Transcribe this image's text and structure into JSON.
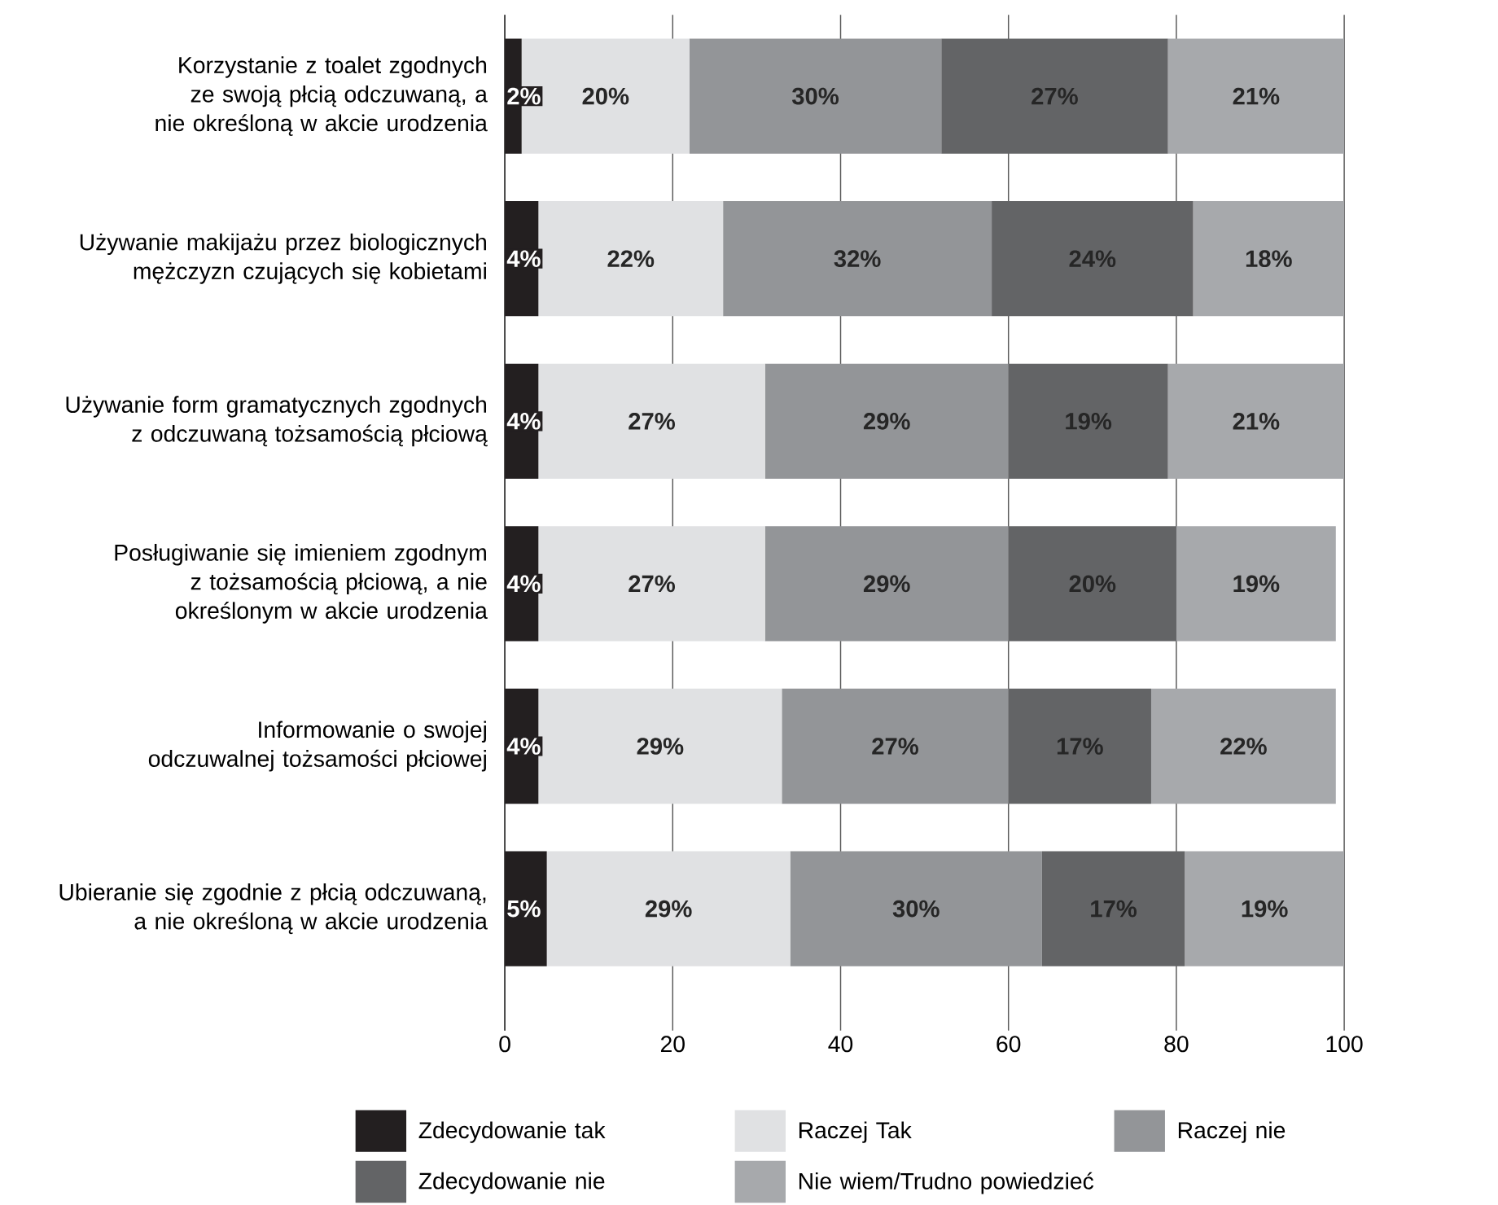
{
  "chart_data": {
    "type": "bar",
    "orientation": "horizontal",
    "stacked": true,
    "categories": [
      "Korzystanie z toalet zgodnych ze swoją płcią odczuwaną, a nie określoną w akcie urodzenia",
      "Używanie makijażu przez biologicznych mężczyzn czujących się kobietami",
      "Używanie form gramatycznych zgodnych z odczuwaną tożsamością płciową",
      "Posługiwanie się imieniem zgodnym z tożsamością płciową, a nie określonym w akcie urodzenia",
      "Informowanie o swojej odczuwalnej tożsamości płciowej",
      "Ubieranie się zgodnie z płcią odczuwaną, a nie określoną w akcie urodzenia"
    ],
    "series": [
      {
        "name": "Zdecydowanie tak",
        "color": "#231f20",
        "values": [
          2,
          4,
          4,
          4,
          4,
          5
        ],
        "value_labels": [
          "2%",
          "4%",
          "4%",
          "4%",
          "4%",
          "5%"
        ]
      },
      {
        "name": "Raczej Tak",
        "color": "#e0e1e3",
        "values": [
          20,
          22,
          27,
          27,
          29,
          29
        ],
        "value_labels": [
          "20%",
          "22%",
          "27%",
          "27%",
          "29%",
          "29%"
        ]
      },
      {
        "name": "Raczej nie",
        "color": "#939598",
        "values": [
          30,
          32,
          29,
          29,
          27,
          30
        ],
        "value_labels": [
          "30%",
          "32%",
          "29%",
          "29%",
          "27%",
          "30%"
        ]
      },
      {
        "name": "Zdecydowanie nie",
        "color": "#636466",
        "values": [
          27,
          24,
          19,
          20,
          17,
          17
        ],
        "value_labels": [
          "27%",
          "24%",
          "19%",
          "20%",
          "17%",
          "17%"
        ]
      },
      {
        "name": "Nie wiem/Trudno powiedzieć",
        "color": "#a7a9ac",
        "values": [
          21,
          18,
          21,
          19,
          22,
          19
        ],
        "value_labels": [
          "21%",
          "18%",
          "21%",
          "19%",
          "22%",
          "19%"
        ]
      }
    ],
    "xlim": [
      0,
      100
    ],
    "xticks": [
      0,
      20,
      40,
      60,
      80,
      100
    ],
    "grid": "x",
    "legend": "bottom"
  }
}
